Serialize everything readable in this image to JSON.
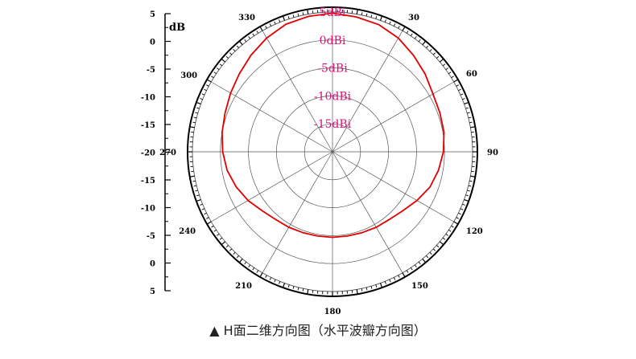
{
  "chart_data": {
    "type": "polar-line",
    "unit_label": "dB",
    "scale_ticks": [
      "5",
      "0",
      "-5",
      "-10",
      "-15",
      "-20",
      "-15",
      "-10",
      "-5",
      "0",
      "5"
    ],
    "ring_labels": [
      "5dBi",
      "0dBi",
      "-5dBi",
      "-10dBi",
      "-15dBi"
    ],
    "rings_dbi": [
      5,
      0,
      -5,
      -10,
      -15
    ],
    "r_range": [
      -20,
      5
    ],
    "angles": [
      0,
      30,
      60,
      90,
      120,
      150,
      180,
      210,
      240,
      270,
      300,
      330
    ],
    "angle_labels": [
      "",
      "30",
      "60",
      "90",
      "120",
      "150",
      "180",
      "210",
      "240",
      "270",
      "300",
      "330"
    ],
    "series": [
      {
        "color": "#e00000",
        "angles_deg": [
          0,
          10,
          20,
          30,
          40,
          50,
          60,
          70,
          80,
          90,
          100,
          110,
          120,
          130,
          140,
          150,
          160,
          170,
          180,
          190,
          200,
          210,
          220,
          230,
          240,
          250,
          260,
          270,
          280,
          290,
          300,
          310,
          320,
          330,
          340,
          350
        ],
        "values_dbi": [
          4.8,
          4.5,
          4.2,
          3.5,
          2.5,
          1.6,
          0.7,
          0.4,
          0.2,
          -0.2,
          -0.8,
          -1.5,
          -2.6,
          -3.6,
          -4.2,
          -4.4,
          -4.6,
          -4.7,
          -4.7,
          -4.7,
          -4.6,
          -4.4,
          -4.2,
          -3.6,
          -2.6,
          -1.7,
          -0.9,
          -0.4,
          0.0,
          0.4,
          1.0,
          1.7,
          2.6,
          3.5,
          4.3,
          4.6
        ]
      }
    ]
  },
  "caption": "▲ H面二维方向图（水平波瓣方向图）"
}
